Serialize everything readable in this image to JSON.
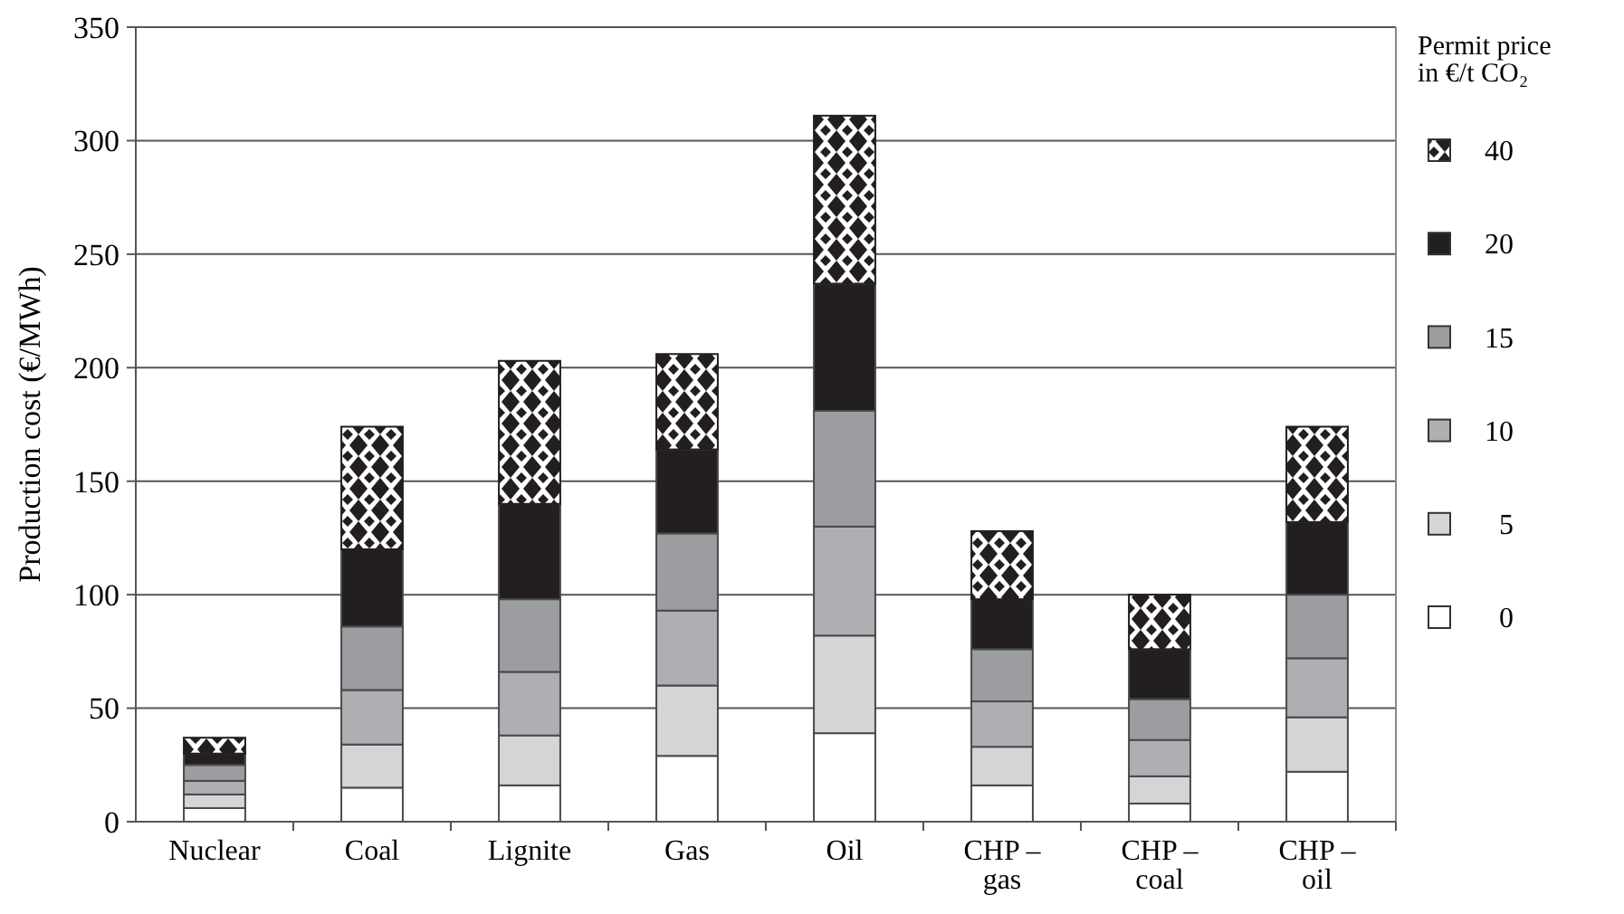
{
  "chart_data": {
    "type": "bar",
    "stacked": true,
    "ylabel": "Production cost (€/MWh)",
    "legend_title": "Permit price in €/t CO₂",
    "legend": "right",
    "grid": "y",
    "categories": [
      "Nuclear",
      "Coal",
      "Lignite",
      "Gas",
      "Oil",
      "CHP – gas",
      "CHP – coal",
      "CHP – oil"
    ],
    "ylim": [
      0,
      350
    ],
    "yticks": [
      0,
      50,
      100,
      150,
      200,
      250,
      300,
      350
    ],
    "series": [
      {
        "name": "0",
        "color": "#ffffff",
        "values": [
          6,
          15,
          16,
          29,
          39,
          16,
          8,
          22
        ]
      },
      {
        "name": "5",
        "color": "#d4d5d7",
        "values": [
          6,
          19,
          22,
          31,
          43,
          17,
          12,
          24
        ]
      },
      {
        "name": "10",
        "color": "#aeafb2",
        "values": [
          6,
          24,
          28,
          33,
          48,
          20,
          16,
          26
        ]
      },
      {
        "name": "15",
        "color": "#9c9da1",
        "values": [
          7,
          28,
          32,
          34,
          51,
          23,
          18,
          28
        ]
      },
      {
        "name": "20",
        "color": "#231f20",
        "values": [
          5,
          34,
          42,
          37,
          56,
          22,
          22,
          32
        ]
      },
      {
        "name": "40",
        "color": "#231f20",
        "values": [
          7,
          54,
          63,
          42,
          74,
          30,
          24,
          42
        ]
      }
    ]
  }
}
